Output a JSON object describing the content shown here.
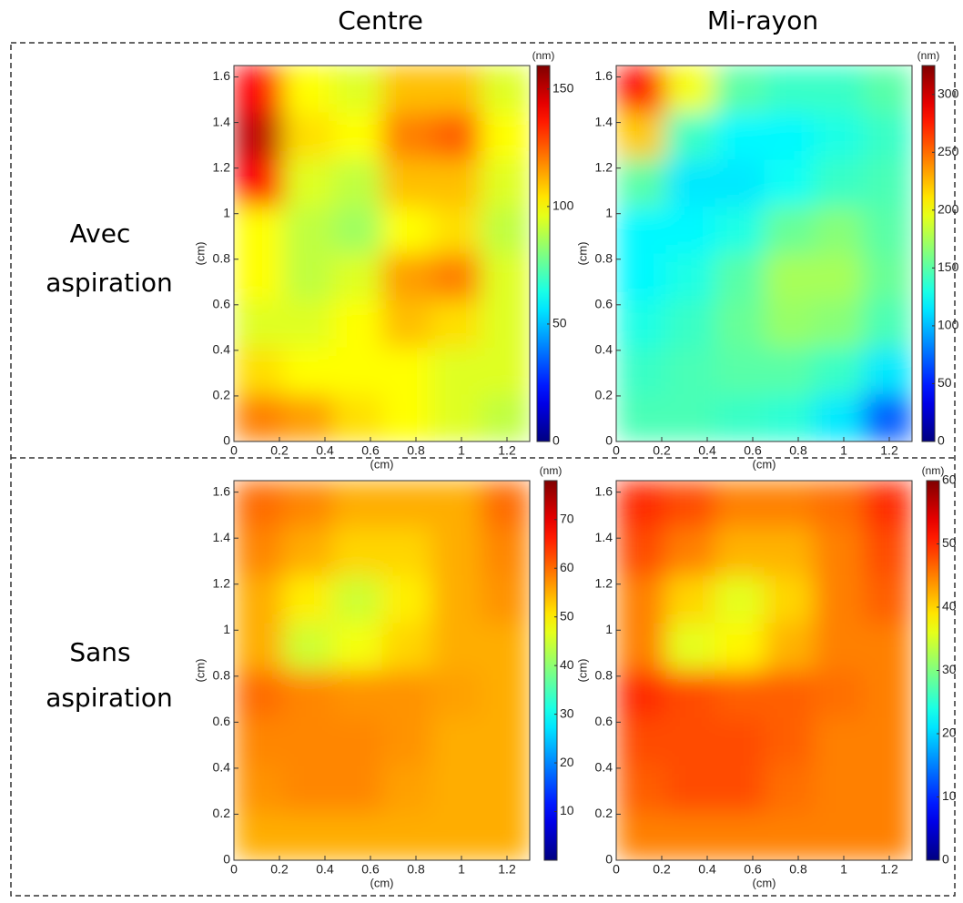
{
  "column_titles": [
    "Centre",
    "Mi-rayon"
  ],
  "row_titles": [
    [
      "Avec",
      "aspiration"
    ],
    [
      "Sans",
      "aspiration"
    ]
  ],
  "chart_data": [
    {
      "type": "heatmap",
      "colormap": "jet",
      "xlabel": "(cm)",
      "ylabel": "(cm)",
      "colorbar_label": "(nm)",
      "xlim": [
        0,
        1.3
      ],
      "ylim": [
        0,
        1.65
      ],
      "xticks": [
        0,
        0.2,
        0.4,
        0.6,
        0.8,
        1,
        1.2
      ],
      "yticks": [
        0,
        0.2,
        0.4,
        0.6,
        0.8,
        1,
        1.2,
        1.4,
        1.6
      ],
      "zlim": [
        0,
        160
      ],
      "zticks": [
        0,
        50,
        100,
        150
      ],
      "z": [
        [
          140,
          100,
          95,
          110,
          110,
          95
        ],
        [
          150,
          105,
          100,
          120,
          125,
          100
        ],
        [
          140,
          95,
          90,
          110,
          110,
          95
        ],
        [
          100,
          90,
          85,
          100,
          105,
          90
        ],
        [
          100,
          90,
          95,
          115,
          120,
          95
        ],
        [
          95,
          95,
          100,
          110,
          105,
          95
        ],
        [
          105,
          100,
          100,
          100,
          95,
          95
        ],
        [
          120,
          115,
          105,
          100,
          95,
          90
        ]
      ]
    },
    {
      "type": "heatmap",
      "colormap": "jet",
      "xlabel": "(cm)",
      "ylabel": "(cm)",
      "colorbar_label": "(nm)",
      "xlim": [
        0,
        1.3
      ],
      "ylim": [
        0,
        1.65
      ],
      "xticks": [
        0,
        0.2,
        0.4,
        0.6,
        0.8,
        1,
        1.2
      ],
      "yticks": [
        0,
        0.2,
        0.4,
        0.6,
        0.8,
        1,
        1.2,
        1.4,
        1.6
      ],
      "zlim": [
        0,
        325
      ],
      "zticks": [
        0,
        50,
        100,
        150,
        200,
        250,
        300
      ],
      "z": [
        [
          280,
          200,
          150,
          140,
          140,
          150
        ],
        [
          220,
          140,
          120,
          120,
          130,
          140
        ],
        [
          150,
          115,
          115,
          125,
          140,
          145
        ],
        [
          120,
          120,
          130,
          155,
          165,
          150
        ],
        [
          120,
          130,
          150,
          175,
          175,
          155
        ],
        [
          130,
          140,
          155,
          170,
          165,
          145
        ],
        [
          140,
          145,
          150,
          150,
          140,
          115
        ],
        [
          145,
          145,
          140,
          135,
          115,
          70
        ]
      ]
    },
    {
      "type": "heatmap",
      "colormap": "jet",
      "xlabel": "(cm)",
      "ylabel": "(cm)",
      "colorbar_label": "(nm)",
      "xlim": [
        0,
        1.3
      ],
      "ylim": [
        0,
        1.65
      ],
      "xticks": [
        0,
        0.2,
        0.4,
        0.6,
        0.8,
        1,
        1.2
      ],
      "yticks": [
        0,
        0.2,
        0.4,
        0.6,
        0.8,
        1,
        1.2,
        1.4,
        1.6
      ],
      "zlim": [
        0,
        78
      ],
      "zticks": [
        10,
        20,
        30,
        40,
        50,
        60,
        70
      ],
      "z": [
        [
          60,
          58,
          55,
          55,
          55,
          60
        ],
        [
          58,
          55,
          52,
          52,
          55,
          58
        ],
        [
          55,
          50,
          45,
          50,
          55,
          57
        ],
        [
          55,
          45,
          48,
          52,
          55,
          55
        ],
        [
          60,
          58,
          57,
          57,
          56,
          55
        ],
        [
          58,
          58,
          58,
          57,
          55,
          55
        ],
        [
          57,
          58,
          58,
          56,
          55,
          55
        ],
        [
          55,
          55,
          55,
          55,
          55,
          55
        ]
      ]
    },
    {
      "type": "heatmap",
      "colormap": "jet",
      "xlabel": "(cm)",
      "ylabel": "(cm)",
      "colorbar_label": "(nm)",
      "xlim": [
        0,
        1.3
      ],
      "ylim": [
        0,
        1.65
      ],
      "xticks": [
        0,
        0.2,
        0.4,
        0.6,
        0.8,
        1,
        1.2
      ],
      "yticks": [
        0,
        0.2,
        0.4,
        0.6,
        0.8,
        1,
        1.2,
        1.4,
        1.6
      ],
      "zlim": [
        0,
        60
      ],
      "zticks": [
        0,
        10,
        20,
        30,
        40,
        50,
        60
      ],
      "z": [
        [
          50,
          48,
          45,
          45,
          46,
          50
        ],
        [
          48,
          45,
          42,
          42,
          45,
          48
        ],
        [
          45,
          40,
          36,
          40,
          45,
          47
        ],
        [
          45,
          36,
          38,
          42,
          45,
          45
        ],
        [
          50,
          48,
          47,
          47,
          46,
          45
        ],
        [
          48,
          48,
          48,
          47,
          45,
          45
        ],
        [
          47,
          48,
          48,
          46,
          45,
          45
        ],
        [
          45,
          45,
          45,
          45,
          45,
          45
        ]
      ]
    }
  ]
}
